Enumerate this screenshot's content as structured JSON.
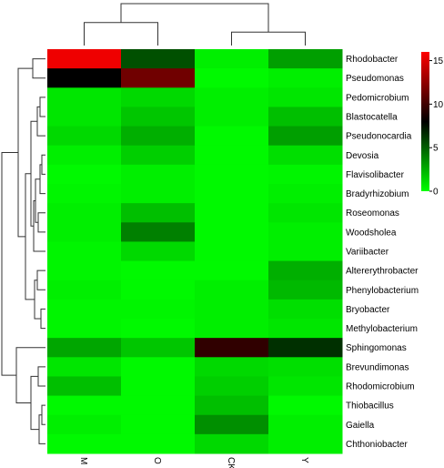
{
  "chart_data": {
    "type": "heatmap",
    "title": "",
    "xlabel": "",
    "ylabel": "",
    "columns": [
      "M",
      "O",
      "CK",
      "Y"
    ],
    "rows": [
      "Rhodobacter",
      "Pseudomonas",
      "Pedomicrobium",
      "Blastocatella",
      "Pseudonocardia",
      "Devosia",
      "Flavisolibacter",
      "Bradyrhizobium",
      "Roseomonas",
      "Woodsholea",
      "Variibacter",
      "Altererythrobacter",
      "Phenylobacterium",
      "Bryobacter",
      "Methylobacterium",
      "Sphingomonas",
      "Brevundimonas",
      "Rhodomicrobium",
      "Thiobacillus",
      "Gaiella",
      "Chthoniobacter"
    ],
    "values": [
      [
        15.5,
        5.5,
        0.5,
        3.0
      ],
      [
        8.0,
        11.5,
        0.2,
        0.5
      ],
      [
        0.8,
        1.2,
        0.5,
        0.8
      ],
      [
        0.8,
        1.8,
        0.5,
        2.0
      ],
      [
        1.2,
        2.5,
        0.2,
        3.0
      ],
      [
        0.5,
        1.5,
        0.2,
        1.0
      ],
      [
        0.2,
        0.5,
        0.2,
        0.3
      ],
      [
        0.3,
        0.5,
        0.2,
        0.5
      ],
      [
        0.5,
        2.0,
        0.2,
        0.8
      ],
      [
        0.5,
        4.0,
        0.2,
        0.5
      ],
      [
        0.3,
        1.2,
        0.2,
        0.5
      ],
      [
        0.3,
        0.2,
        0.2,
        2.5
      ],
      [
        0.5,
        0.2,
        0.5,
        2.2
      ],
      [
        0.3,
        0.3,
        0.5,
        1.0
      ],
      [
        0.3,
        0.2,
        0.5,
        0.8
      ],
      [
        2.8,
        1.8,
        9.5,
        6.5
      ],
      [
        0.8,
        0.2,
        1.2,
        1.0
      ],
      [
        2.0,
        0.2,
        1.5,
        0.8
      ],
      [
        0.2,
        0.2,
        2.0,
        0.2
      ],
      [
        0.5,
        0.2,
        3.5,
        0.5
      ],
      [
        0.2,
        0.2,
        1.2,
        0.5
      ]
    ],
    "color_scale": {
      "stops": [
        {
          "value": 0,
          "color": "#00ff00"
        },
        {
          "value": 8,
          "color": "#000000"
        },
        {
          "value": 16,
          "color": "#ff0000"
        }
      ],
      "ticks": [
        0,
        5,
        10,
        15
      ],
      "range": [
        0,
        16
      ]
    },
    "col_dendrogram": [
      {
        "a": "M",
        "b": "O",
        "h": 0.55
      },
      {
        "a": "CK",
        "b": "Y",
        "h": 0.32
      },
      {
        "a": "M+O",
        "b": "CK+Y",
        "h": 1.0
      }
    ],
    "row_dendrogram": "hierarchical clustering tree drawn on left (leaf order as rows)"
  }
}
